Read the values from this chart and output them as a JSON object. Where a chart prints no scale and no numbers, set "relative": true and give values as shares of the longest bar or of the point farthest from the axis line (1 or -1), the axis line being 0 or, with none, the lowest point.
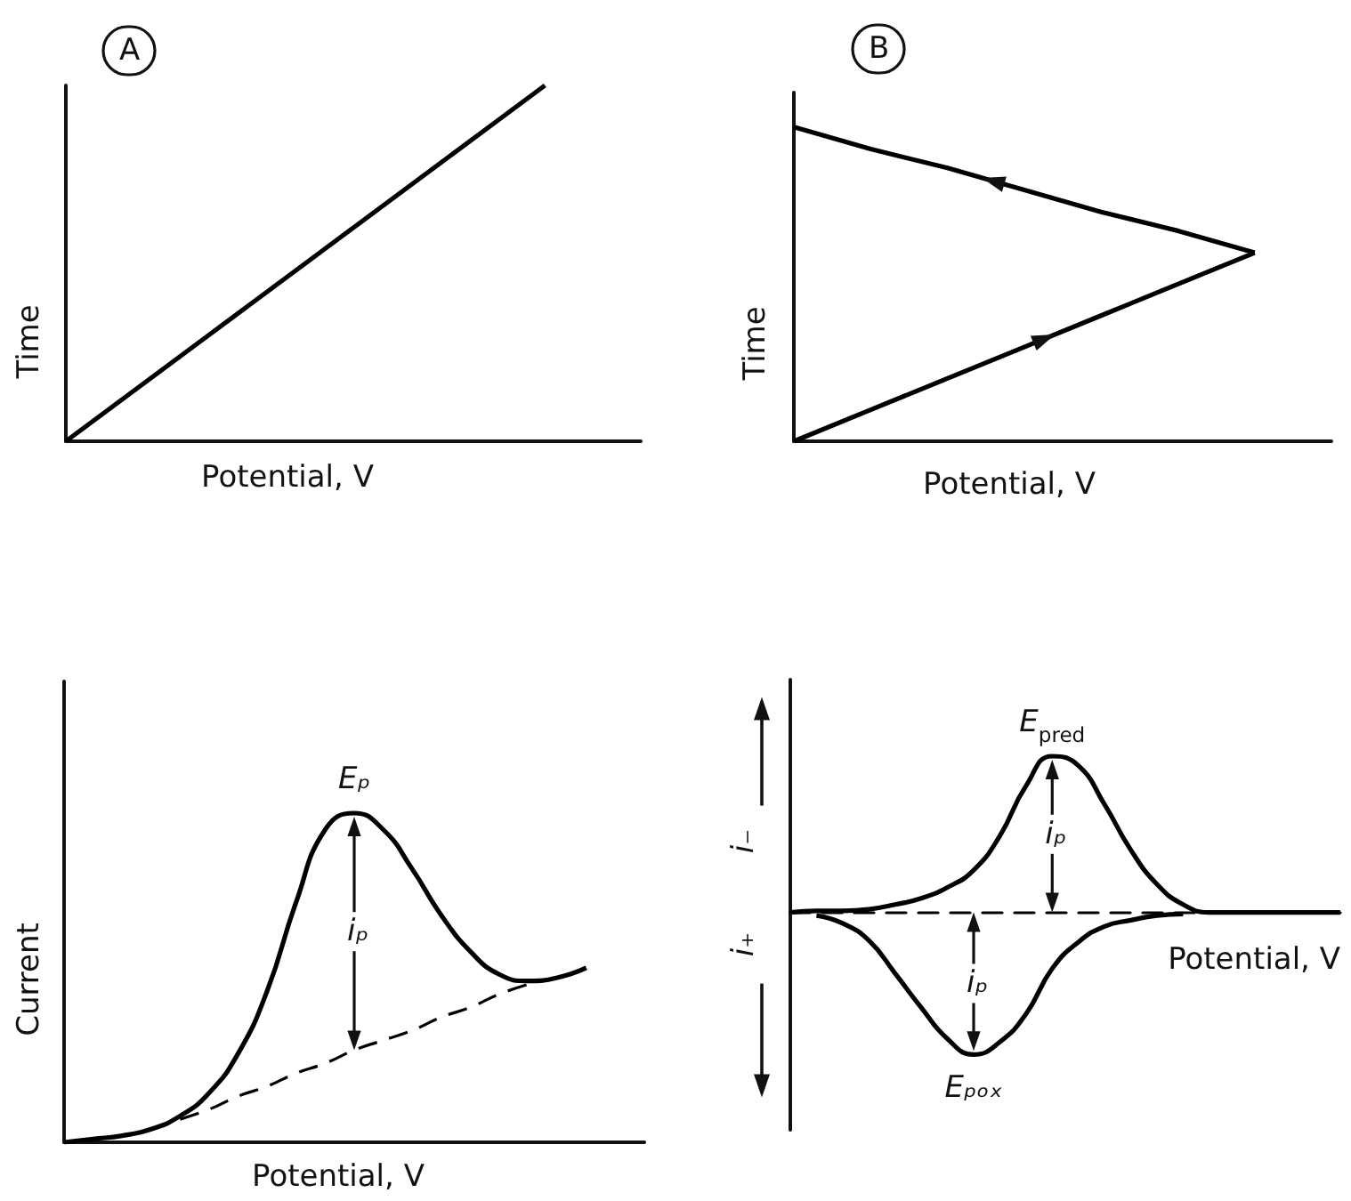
{
  "chart_data": [
    {
      "type": "line",
      "title": "A",
      "xlabel": "Potential, V",
      "ylabel": "Time",
      "relative": true,
      "categories": [
        null,
        null,
        null,
        null,
        null,
        null,
        null,
        null,
        null,
        null,
        null,
        null,
        null
      ],
      "series": [
        {
          "color": "#000000",
          "values": [
            0,
            0.1,
            0.2,
            0.3,
            0.4,
            0.5,
            0.6,
            0.7,
            0.8,
            0.9,
            1,
            null,
            null
          ]
        }
      ]
    },
    {
      "type": "line",
      "title": "B",
      "xlabel": "Potential, V",
      "ylabel": "Time",
      "relative": true,
      "categories": [
        null,
        null,
        null,
        null,
        null,
        null,
        null,
        null
      ],
      "series": [
        {
          "color": "#000000",
          "values": [
            0,
            0.1,
            0.2,
            0.3,
            0.4,
            0.5,
            0.6,
            null
          ]
        },
        {
          "color": "#000000",
          "values": [
            1,
            0.93,
            0.87,
            0.8,
            0.73,
            0.67,
            0.6,
            null
          ]
        }
      ]
    },
    {
      "type": "line",
      "xlabel": "Potential, V",
      "ylabel": "Current",
      "relative": true,
      "annotations": [
        "Eₚ",
        "iₚ"
      ],
      "categories": [
        null,
        null,
        null,
        null,
        null,
        null,
        null,
        null,
        null,
        null,
        null,
        null,
        null,
        null,
        null,
        null,
        null,
        null,
        null,
        null,
        null
      ],
      "series": [
        {
          "color": "#000000",
          "values": [
            0,
            0.01,
            0.02,
            0.04,
            0.08,
            0.15,
            0.27,
            0.46,
            0.73,
            0.95,
            1,
            0.95,
            0.83,
            0.69,
            0.58,
            0.51,
            0.49,
            0.5,
            0.53,
            null,
            null
          ]
        },
        {
          "color": "#000000",
          "line_style": "dashed",
          "values": [
            null,
            null,
            null,
            null,
            0.07,
            0.1,
            0.14,
            0.17,
            0.21,
            0.24,
            0.28,
            0.31,
            0.34,
            0.38,
            0.41,
            0.45,
            0.48,
            null,
            null,
            null,
            null
          ]
        }
      ]
    },
    {
      "type": "line",
      "xlabel": "Potential, V",
      "relative": true,
      "annotations": [
        "E$_{pred}$",
        "iₚ",
        "Eₚₒₓ",
        "iₚ",
        "i₋",
        "i₊"
      ],
      "ref_lines": [
        {
          "axis": "y",
          "value": 0,
          "color": "#000000",
          "line_style": "dashed"
        }
      ],
      "categories": [
        null,
        null,
        null,
        null,
        null,
        null,
        null,
        null,
        null,
        null,
        null,
        null,
        null,
        null,
        null,
        null,
        null,
        null,
        null,
        null,
        null,
        null
      ],
      "series": [
        {
          "color": "#000000",
          "values": [
            0,
            0.01,
            0.01,
            0.02,
            0.05,
            0.09,
            0.16,
            0.27,
            0.49,
            0.81,
            1,
            0.94,
            0.69,
            0.4,
            0.18,
            0.05,
            0,
            0,
            0,
            0,
            0,
            0
          ]
        },
        {
          "color": "#000000",
          "values": [
            null,
            -0.02,
            -0.07,
            -0.18,
            -0.39,
            -0.61,
            -0.81,
            -0.91,
            -0.83,
            -0.65,
            -0.36,
            -0.19,
            -0.09,
            -0.05,
            -0.02,
            -0.01,
            null,
            null,
            null,
            null,
            null,
            null
          ]
        }
      ]
    }
  ]
}
